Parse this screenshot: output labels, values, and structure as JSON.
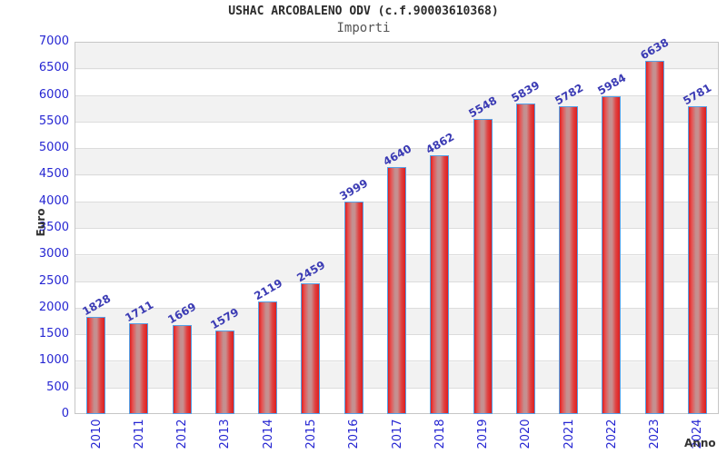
{
  "title": "USHAC ARCOBALENO ODV (c.f.90003610368)",
  "subtitle": "Importi",
  "chart_data": {
    "type": "bar",
    "title": "USHAC ARCOBALENO ODV (c.f.90003610368)",
    "subtitle": "Importi",
    "xlabel": "Anno",
    "ylabel": "Euro",
    "categories": [
      "2010",
      "2011",
      "2012",
      "2013",
      "2014",
      "2015",
      "2016",
      "2017",
      "2018",
      "2019",
      "2020",
      "2021",
      "2022",
      "2023",
      "2024"
    ],
    "values": [
      1828,
      1711,
      1669,
      1579,
      2119,
      2459,
      3999,
      4640,
      4862,
      5548,
      5839,
      5782,
      5984,
      6638,
      5781
    ],
    "ylim": [
      0,
      7000
    ],
    "ytick_step": 500,
    "ytick_labels": [
      "0",
      "500",
      "1000",
      "1500",
      "2000",
      "2500",
      "3000",
      "3500",
      "4000",
      "4500",
      "5000",
      "5500",
      "6000",
      "6500",
      "7000"
    ],
    "grid": "horizontal-only",
    "legend": "none",
    "band_colors": [
      "#f2f2f2",
      "#ffffff"
    ],
    "bar_border_color": "#55a0e6",
    "bar_fill_colors": [
      "#dd1f1f",
      "#c29090"
    ],
    "tick_label_color": "#2626d2",
    "value_label_color": "#3b3bb4",
    "axis_title_color": "#333333"
  }
}
